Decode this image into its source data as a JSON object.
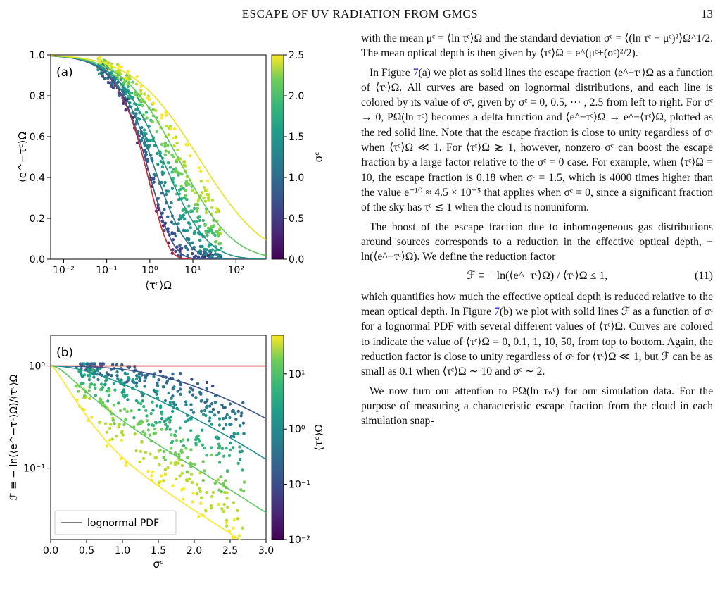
{
  "header": {
    "title": "ESCAPE OF UV RADIATION FROM GMCS",
    "page_number": "13"
  },
  "figure": {
    "panel_a": {
      "label": "(a)",
      "xlabel": "⟨τᶜ⟩Ω",
      "ylabel": "⟨e^−τᶜ⟩Ω",
      "x_ticks": [
        "10⁻²",
        "10⁻¹",
        "10⁰",
        "10¹",
        "10²"
      ],
      "y_ticks": [
        "0.0",
        "0.2",
        "0.4",
        "0.6",
        "0.8",
        "1.0"
      ],
      "colorbar_label": "σᶜ",
      "colorbar_ticks": [
        "0.0",
        "0.5",
        "1.0",
        "1.5",
        "2.0",
        "2.5"
      ]
    },
    "panel_b": {
      "label": "(b)",
      "xlabel": "σᶜ",
      "ylabel": "ℱ ≡ − ln(⟨e^−τᶜ⟩Ω)/⟨τᶜ⟩Ω",
      "x_ticks": [
        "0.0",
        "0.5",
        "1.0",
        "1.5",
        "2.0",
        "2.5",
        "3.0"
      ],
      "y_ticks": [
        "10⁰",
        "10⁻¹"
      ],
      "colorbar_label": "⟨τᶜ⟩Ω",
      "colorbar_ticks": [
        "10¹",
        "10⁰",
        "10⁻¹",
        "10⁻²"
      ],
      "legend": "lognormal PDF"
    }
  },
  "chart_data": [
    {
      "type": "line",
      "panel": "(a)",
      "xlabel": "⟨τᶜ⟩Ω",
      "ylabel": "⟨e^−τᶜ⟩Ω",
      "xscale": "log",
      "xlim": [
        0.005,
        500
      ],
      "ylim": [
        0,
        1
      ],
      "series_param": "σᶜ",
      "series": [
        {
          "sigma": 0.0,
          "color": "#d62728"
        },
        {
          "sigma": 0.5,
          "color": "#3b528b"
        },
        {
          "sigma": 1.0,
          "color": "#2c728e"
        },
        {
          "sigma": 1.5,
          "color": "#21918c"
        },
        {
          "sigma": 2.0,
          "color": "#5ec962"
        },
        {
          "sigma": 2.5,
          "color": "#e8e419"
        }
      ],
      "scatter_note": "simulation points colored by σᶜ",
      "colorbar": {
        "label": "σᶜ",
        "range": [
          0,
          2.5
        ],
        "cmap": "viridis"
      }
    },
    {
      "type": "line",
      "panel": "(b)",
      "xlabel": "σᶜ",
      "ylabel": "ℱ ≡ − ln(⟨e^−τᶜ⟩Ω)/⟨τᶜ⟩Ω",
      "yscale": "log",
      "xlim": [
        0,
        3
      ],
      "ylim": [
        0.02,
        2
      ],
      "series_param": "⟨τᶜ⟩Ω",
      "series": [
        {
          "tau": 0.0,
          "color": "#d62728"
        },
        {
          "tau": 0.1,
          "color": "#3b528b"
        },
        {
          "tau": 1,
          "color": "#21918c"
        },
        {
          "tau": 10,
          "color": "#5ec962"
        },
        {
          "tau": 50,
          "color": "#fde725"
        }
      ],
      "legend": [
        "lognormal PDF"
      ],
      "colorbar": {
        "label": "⟨τᶜ⟩Ω",
        "range": [
          0.01,
          50
        ],
        "scale": "log",
        "cmap": "viridis"
      }
    }
  ],
  "text": {
    "p1": "with the mean μᶜ = ⟨ln τᶜ⟩Ω and the standard deviation σᶜ = ⟨(ln τᶜ − μᶜ)²⟩Ω^1/2. The mean optical depth is then given by ⟨τᶜ⟩Ω = e^(μᶜ+(σᶜ)²/2).",
    "p2_pre": "In Figure ",
    "p2_ref": "7",
    "p2_post": "(a) we plot as solid lines the escape fraction ⟨e^−τᶜ⟩Ω as a function of ⟨τᶜ⟩Ω. All curves are based on lognormal distributions, and each line is colored by its value of σᶜ, given by σᶜ = 0, 0.5, ⋯ , 2.5 from left to right. For σᶜ → 0, PΩ(ln τᶜ) becomes a delta function and ⟨e^−τᶜ⟩Ω → e^−⟨τᶜ⟩Ω, plotted as the red solid line. Note that the escape fraction is close to unity regardless of σᶜ when ⟨τᶜ⟩Ω ≪ 1. For ⟨τᶜ⟩Ω ≳ 1, however, nonzero σᶜ can boost the escape fraction by a large factor relative to the σᶜ = 0 case. For example, when ⟨τᶜ⟩Ω = 10, the escape fraction is 0.18 when σᶜ = 1.5, which is 4000 times higher than the value e⁻¹⁰ ≈ 4.5 × 10⁻⁵ that applies when σᶜ = 0, since a significant fraction of the sky has τᶜ ≲ 1 when the cloud is nonuniform.",
    "p3": "The boost of the escape fraction due to inhomogeneous gas distributions around sources corresponds to a reduction in the effective optical depth, − ln(⟨e^−τᶜ⟩Ω). We define the reduction factor",
    "eq": "ℱ ≡ − ln(⟨e^−τᶜ⟩Ω) / ⟨τᶜ⟩Ω ≤ 1,",
    "eq_num": "(11)",
    "p4_pre": "which quantifies how much the effective optical depth is reduced relative to the mean optical depth. In Figure ",
    "p4_ref": "7",
    "p4_post": "(b) we plot with solid lines ℱ as a function of σᶜ for a lognormal PDF with several different values of ⟨τᶜ⟩Ω. Curves are colored to indicate the value of ⟨τᶜ⟩Ω = 0, 0.1, 1, 10, 50, from top to bottom. Again, the reduction factor is close to unity regardless of σᶜ for ⟨τᶜ⟩Ω ≪ 1, but ℱ can be as small as 0.1 when ⟨τᶜ⟩Ω ∼ 10 and σᶜ ∼ 2.",
    "p5": "We now turn our attention to PΩ(ln τₙᶜ) for our simulation data. For the purpose of measuring a characteristic escape fraction from the cloud in each simulation snap-"
  }
}
